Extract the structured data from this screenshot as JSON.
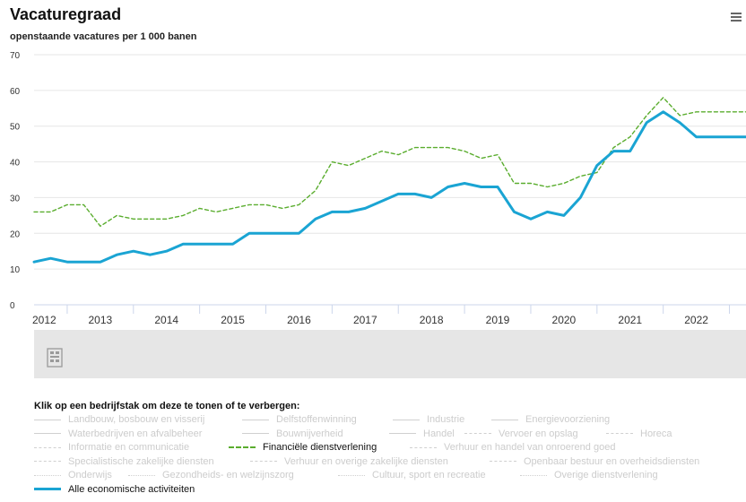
{
  "header": {
    "title": "Vacaturegraad",
    "subtitle": "openstaande vacatures per 1 000 banen"
  },
  "icons": {
    "menu": "hamburger-menu-icon",
    "logo": "cbs-logo-icon"
  },
  "colors": {
    "fin": "#5aad2e",
    "all": "#1aa4d3",
    "grid": "#e6e6e6",
    "navigator": "#e6e6e6"
  },
  "chart_data": {
    "type": "line",
    "title": "Vacaturegraad",
    "subtitle": "openstaande vacatures per 1 000 banen",
    "ylim": [
      0,
      70
    ],
    "yticks": [
      "0",
      "10",
      "20",
      "30",
      "40",
      "50",
      "60",
      "70"
    ],
    "xlim": [
      2012.0,
      2022.75
    ],
    "xtick_labels": [
      "2012",
      "2013",
      "2014",
      "2015",
      "2016",
      "2017",
      "2018",
      "2019",
      "2020",
      "2021",
      "2022"
    ],
    "grid": true,
    "x": [
      2012.0,
      2012.25,
      2012.5,
      2012.75,
      2013.0,
      2013.25,
      2013.5,
      2013.75,
      2014.0,
      2014.25,
      2014.5,
      2014.75,
      2015.0,
      2015.25,
      2015.5,
      2015.75,
      2016.0,
      2016.25,
      2016.5,
      2016.75,
      2017.0,
      2017.25,
      2017.5,
      2017.75,
      2018.0,
      2018.25,
      2018.5,
      2018.75,
      2019.0,
      2019.25,
      2019.5,
      2019.75,
      2020.0,
      2020.25,
      2020.5,
      2020.75,
      2021.0,
      2021.25,
      2021.5,
      2021.75,
      2022.0,
      2022.25,
      2022.5,
      2022.75
    ],
    "series": [
      {
        "name": "Financiële dienstverlening",
        "style": "dashed",
        "color": "#5aad2e",
        "values": [
          26,
          26,
          28,
          28,
          22,
          25,
          24,
          24,
          24,
          25,
          27,
          26,
          27,
          28,
          28,
          27,
          28,
          32,
          40,
          39,
          41,
          43,
          42,
          44,
          44,
          44,
          43,
          41,
          42,
          34,
          34,
          33,
          34,
          36,
          37,
          44,
          47,
          53,
          58,
          53,
          54,
          54,
          54,
          54
        ]
      },
      {
        "name": "Alle economische activiteiten",
        "style": "solid",
        "color": "#1aa4d3",
        "values": [
          12,
          13,
          12,
          12,
          12,
          14,
          15,
          14,
          15,
          17,
          17,
          17,
          17,
          20,
          20,
          20,
          20,
          24,
          26,
          26,
          27,
          29,
          31,
          31,
          30,
          33,
          34,
          33,
          33,
          26,
          24,
          26,
          25,
          30,
          39,
          43,
          43,
          51,
          54,
          51,
          47,
          47,
          47,
          47
        ]
      }
    ]
  },
  "legend": {
    "title": "Klik op een bedrijfstak om deze te tonen of te verbergen:",
    "items": [
      {
        "label": "Landbouw, bosbouw en visserij",
        "style": "solid"
      },
      {
        "label": "Delfstoffenwinning",
        "style": "solid"
      },
      {
        "label": "Industrie",
        "style": "solid"
      },
      {
        "label": "Energievoorziening",
        "style": "solid"
      },
      {
        "label": "Waterbedrijven en afvalbeheer",
        "style": "solid"
      },
      {
        "label": "Bouwnijverheid",
        "style": "solid"
      },
      {
        "label": "Handel",
        "style": "solid"
      },
      {
        "label": "Vervoer en opslag",
        "style": "dashed"
      },
      {
        "label": "Horeca",
        "style": "dashed"
      },
      {
        "label": "Informatie en communicatie",
        "style": "dashed"
      },
      {
        "label": "Financiële dienstverlening",
        "style": "dashed",
        "active": true
      },
      {
        "label": "Verhuur en handel van onroerend goed",
        "style": "dashed"
      },
      {
        "label": "Specialistische zakelijke diensten",
        "style": "dashed"
      },
      {
        "label": "Verhuur en overige zakelijke diensten",
        "style": "dashed"
      },
      {
        "label": "Openbaar bestuur en overheidsdiensten",
        "style": "dashed"
      },
      {
        "label": "Onderwijs",
        "style": "dotted"
      },
      {
        "label": "Gezondheids- en welzijnszorg",
        "style": "dotted"
      },
      {
        "label": "Cultuur, sport en recreatie",
        "style": "dotted"
      },
      {
        "label": "Overige dienstverlening",
        "style": "dotted"
      },
      {
        "label": "Alle economische activiteiten",
        "style": "solid",
        "active": true
      }
    ]
  }
}
